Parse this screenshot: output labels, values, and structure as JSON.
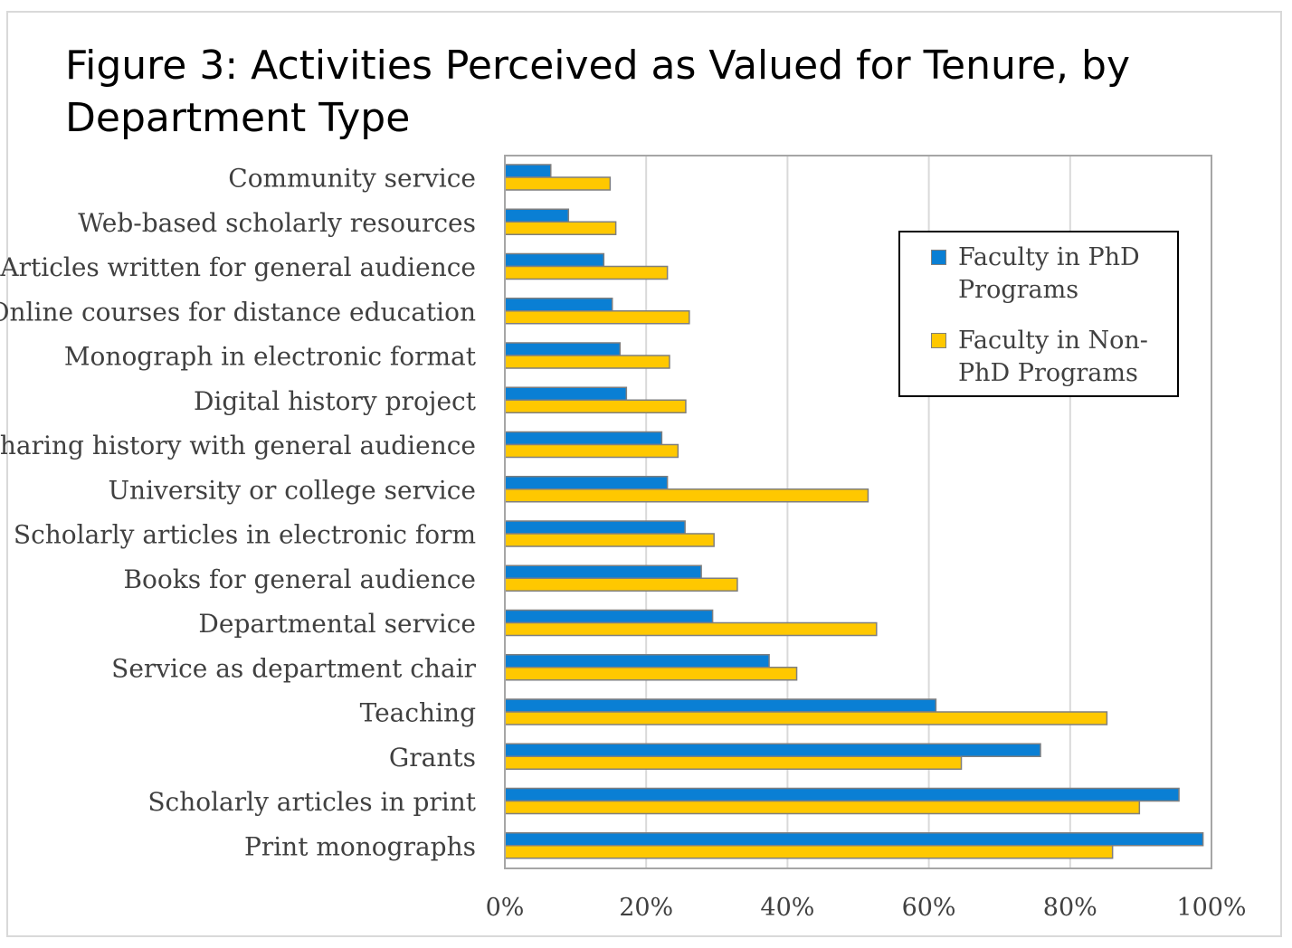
{
  "chart_data": {
    "type": "bar",
    "orientation": "horizontal",
    "title": "Figure 3: Activities Perceived as Valued for Tenure, by Department Type",
    "categories": [
      "Community service",
      "Web-based scholarly resources",
      "Articles written for general audience",
      "Online courses for distance education",
      "Monograph in electronic format",
      "Digital history project",
      "Sharing history with general audience",
      "University or college service",
      "Scholarly articles in electronic form",
      "Books for general audience",
      "Departmental service",
      "Service as department chair",
      "Teaching",
      "Grants",
      "Scholarly articles in print",
      "Print monographs"
    ],
    "series": [
      {
        "name": "Faculty in PhD Programs",
        "color": "#0a7fd4",
        "values": [
          6.5,
          9,
          14,
          15.2,
          16.3,
          17.2,
          22.2,
          23,
          25.5,
          27.8,
          29.4,
          37.4,
          61,
          75.8,
          95.4,
          98.8
        ]
      },
      {
        "name": "Faculty in Non-PhD Programs",
        "color": "#ffc800",
        "values": [
          14.9,
          15.7,
          23,
          26.1,
          23.3,
          25.6,
          24.5,
          51.4,
          29.6,
          32.9,
          52.6,
          41.3,
          85.2,
          64.6,
          89.8,
          86
        ]
      }
    ],
    "xlim": [
      0,
      100
    ],
    "xticks": [
      "0%",
      "20%",
      "40%",
      "60%",
      "80%",
      "100%"
    ],
    "grid": true,
    "legend": "top-right"
  }
}
